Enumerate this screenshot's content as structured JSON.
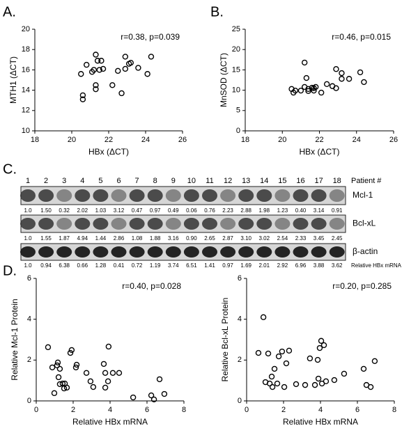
{
  "panel_labels": [
    "A.",
    "B.",
    "C.",
    "D."
  ],
  "chart_data": [
    {
      "type": "scatter",
      "ylabel": "MTH1 (ΔCT)",
      "xlabel": "HBx (ΔCT)",
      "annotation": "r=0.38, p=0.039",
      "color": "#000000",
      "x": [
        20.5,
        20.6,
        20.6,
        20.8,
        21.1,
        21.2,
        21.3,
        21.3,
        21.3,
        21.4,
        21.5,
        21.6,
        21.7,
        22.2,
        22.5,
        22.7,
        22.9,
        22.9,
        23.1,
        23.2,
        23.6,
        24.1,
        24.3
      ],
      "values": [
        15.6,
        13.5,
        13.1,
        16.5,
        15.8,
        16.0,
        14.1,
        17.5,
        14.5,
        16.9,
        16.0,
        16.9,
        16.1,
        14.5,
        15.9,
        13.7,
        16.1,
        17.3,
        16.6,
        16.7,
        16.2,
        15.6,
        17.3
      ],
      "xlim": [
        18,
        26
      ],
      "xticks": [
        18,
        20,
        22,
        24,
        26
      ],
      "ylim": [
        10,
        20
      ],
      "yticks": [
        10,
        12,
        14,
        16,
        18,
        20
      ]
    },
    {
      "type": "scatter",
      "ylabel": "MnSOD (ΔCT)",
      "xlabel": "HBx (ΔCT)",
      "annotation": "r=0.46, p=0.015",
      "color": "#000000",
      "x": [
        20.5,
        20.6,
        20.7,
        21.0,
        21.2,
        21.2,
        21.3,
        21.4,
        21.4,
        21.6,
        21.7,
        21.7,
        21.8,
        22.1,
        22.4,
        22.7,
        22.9,
        22.9,
        23.2,
        23.2,
        23.6,
        24.2,
        24.4
      ],
      "values": [
        10.3,
        9.4,
        9.9,
        9.9,
        10.8,
        16.8,
        13.0,
        10.3,
        9.8,
        10.6,
        9.9,
        10.5,
        10.8,
        9.4,
        11.5,
        11.0,
        10.5,
        15.2,
        12.8,
        14.2,
        12.8,
        14.4,
        12.0
      ],
      "xlim": [
        18,
        26
      ],
      "xticks": [
        18,
        20,
        22,
        24,
        26
      ],
      "ylim": [
        0,
        25
      ],
      "yticks": [
        0,
        5,
        10,
        15,
        20,
        25
      ]
    },
    {
      "type": "scatter",
      "ylabel": "Relative Mcl-1 Protein",
      "xlabel": "Relative HBx mRNA",
      "annotation": "r=0.40, p=0.028",
      "color": "#000000",
      "x": [
        0.64,
        0.87,
        0.98,
        1.13,
        1.17,
        1.21,
        1.28,
        1.28,
        1.43,
        1.51,
        1.55,
        1.66,
        1.85,
        1.92,
        2.15,
        2.19,
        2.72,
        2.94,
        3.09,
        3.66,
        3.74,
        3.74,
        3.92,
        3.89,
        4.15,
        4.49,
        5.25,
        6.23,
        6.38,
        6.68,
        6.94
      ],
      "values": [
        2.63,
        1.64,
        0.38,
        1.74,
        1.88,
        1.16,
        0.82,
        1.57,
        0.85,
        0.61,
        0.85,
        0.65,
        2.35,
        2.49,
        1.64,
        1.77,
        1.37,
        0.96,
        0.68,
        1.81,
        1.37,
        0.65,
        2.66,
        0.96,
        1.37,
        1.37,
        0.17,
        0.27,
        0.07,
        1.06,
        0.34
      ],
      "xlim": [
        0,
        8
      ],
      "xticks": [
        0,
        2,
        4,
        6,
        8
      ],
      "ylim": [
        0,
        6
      ],
      "yticks": [
        0,
        2,
        4,
        6
      ]
    },
    {
      "type": "scatter",
      "ylabel": "Relative Bcl-xL Protein",
      "xlabel": "Relative HBx mRNA",
      "annotation": "r=0.20, p=0.285",
      "color": "#000000",
      "x": [
        0.64,
        0.91,
        1.02,
        1.17,
        1.25,
        1.36,
        1.4,
        1.51,
        1.66,
        1.74,
        1.92,
        2.15,
        2.04,
        2.3,
        2.68,
        3.17,
        3.43,
        3.7,
        3.85,
        3.89,
        3.96,
        4.04,
        4.08,
        4.19,
        4.3,
        4.75,
        5.28,
        6.34,
        6.49,
        6.72,
        6.94
      ],
      "values": [
        2.35,
        4.1,
        0.92,
        2.32,
        0.85,
        1.19,
        0.68,
        1.57,
        0.85,
        2.18,
        2.42,
        1.84,
        0.68,
        2.46,
        0.82,
        0.78,
        2.08,
        0.78,
        2.01,
        1.09,
        2.59,
        2.94,
        0.85,
        2.73,
        0.96,
        1.02,
        1.33,
        1.57,
        0.78,
        0.68,
        1.95
      ],
      "xlim": [
        0,
        8
      ],
      "xticks": [
        0,
        2,
        4,
        6,
        8
      ],
      "ylim": [
        0,
        6
      ],
      "yticks": [
        0,
        2,
        4,
        6
      ]
    }
  ],
  "blot": {
    "lanes": [
      "1",
      "2",
      "3",
      "4",
      "5",
      "6",
      "7",
      "8",
      "9",
      "10",
      "11",
      "12",
      "13",
      "14",
      "15",
      "16",
      "17",
      "18"
    ],
    "lane_header": "Patient #",
    "rows": [
      {
        "name": "Mcl-1",
        "values": [
          "1.0",
          "1.50",
          "0.32",
          "2.02",
          "1.03",
          "3.12",
          "0.47",
          "0.97",
          "0.49",
          "0.06",
          "0.76",
          "2.23",
          "2.88",
          "1.98",
          "1.23",
          "0.40",
          "3.14",
          "0.91"
        ]
      },
      {
        "name": "Bcl-xL",
        "values": [
          "1.0",
          "1.55",
          "1.87",
          "4.94",
          "1.44",
          "2.86",
          "1.08",
          "1.88",
          "3.16",
          "0.90",
          "2.65",
          "2.87",
          "3.10",
          "3.02",
          "2.54",
          "2.33",
          "3.45",
          "2.45"
        ]
      },
      {
        "name": "β-actin",
        "values": [
          "1.0",
          "0.94",
          "6.38",
          "0.66",
          "1.28",
          "0.41",
          "0.72",
          "1.19",
          "3.74",
          "6.51",
          "1.41",
          "0.97",
          "1.69",
          "2.01",
          "2.92",
          "6.96",
          "3.88",
          "3.62"
        ]
      }
    ],
    "last_label": "Relative  HBx mRNA"
  }
}
